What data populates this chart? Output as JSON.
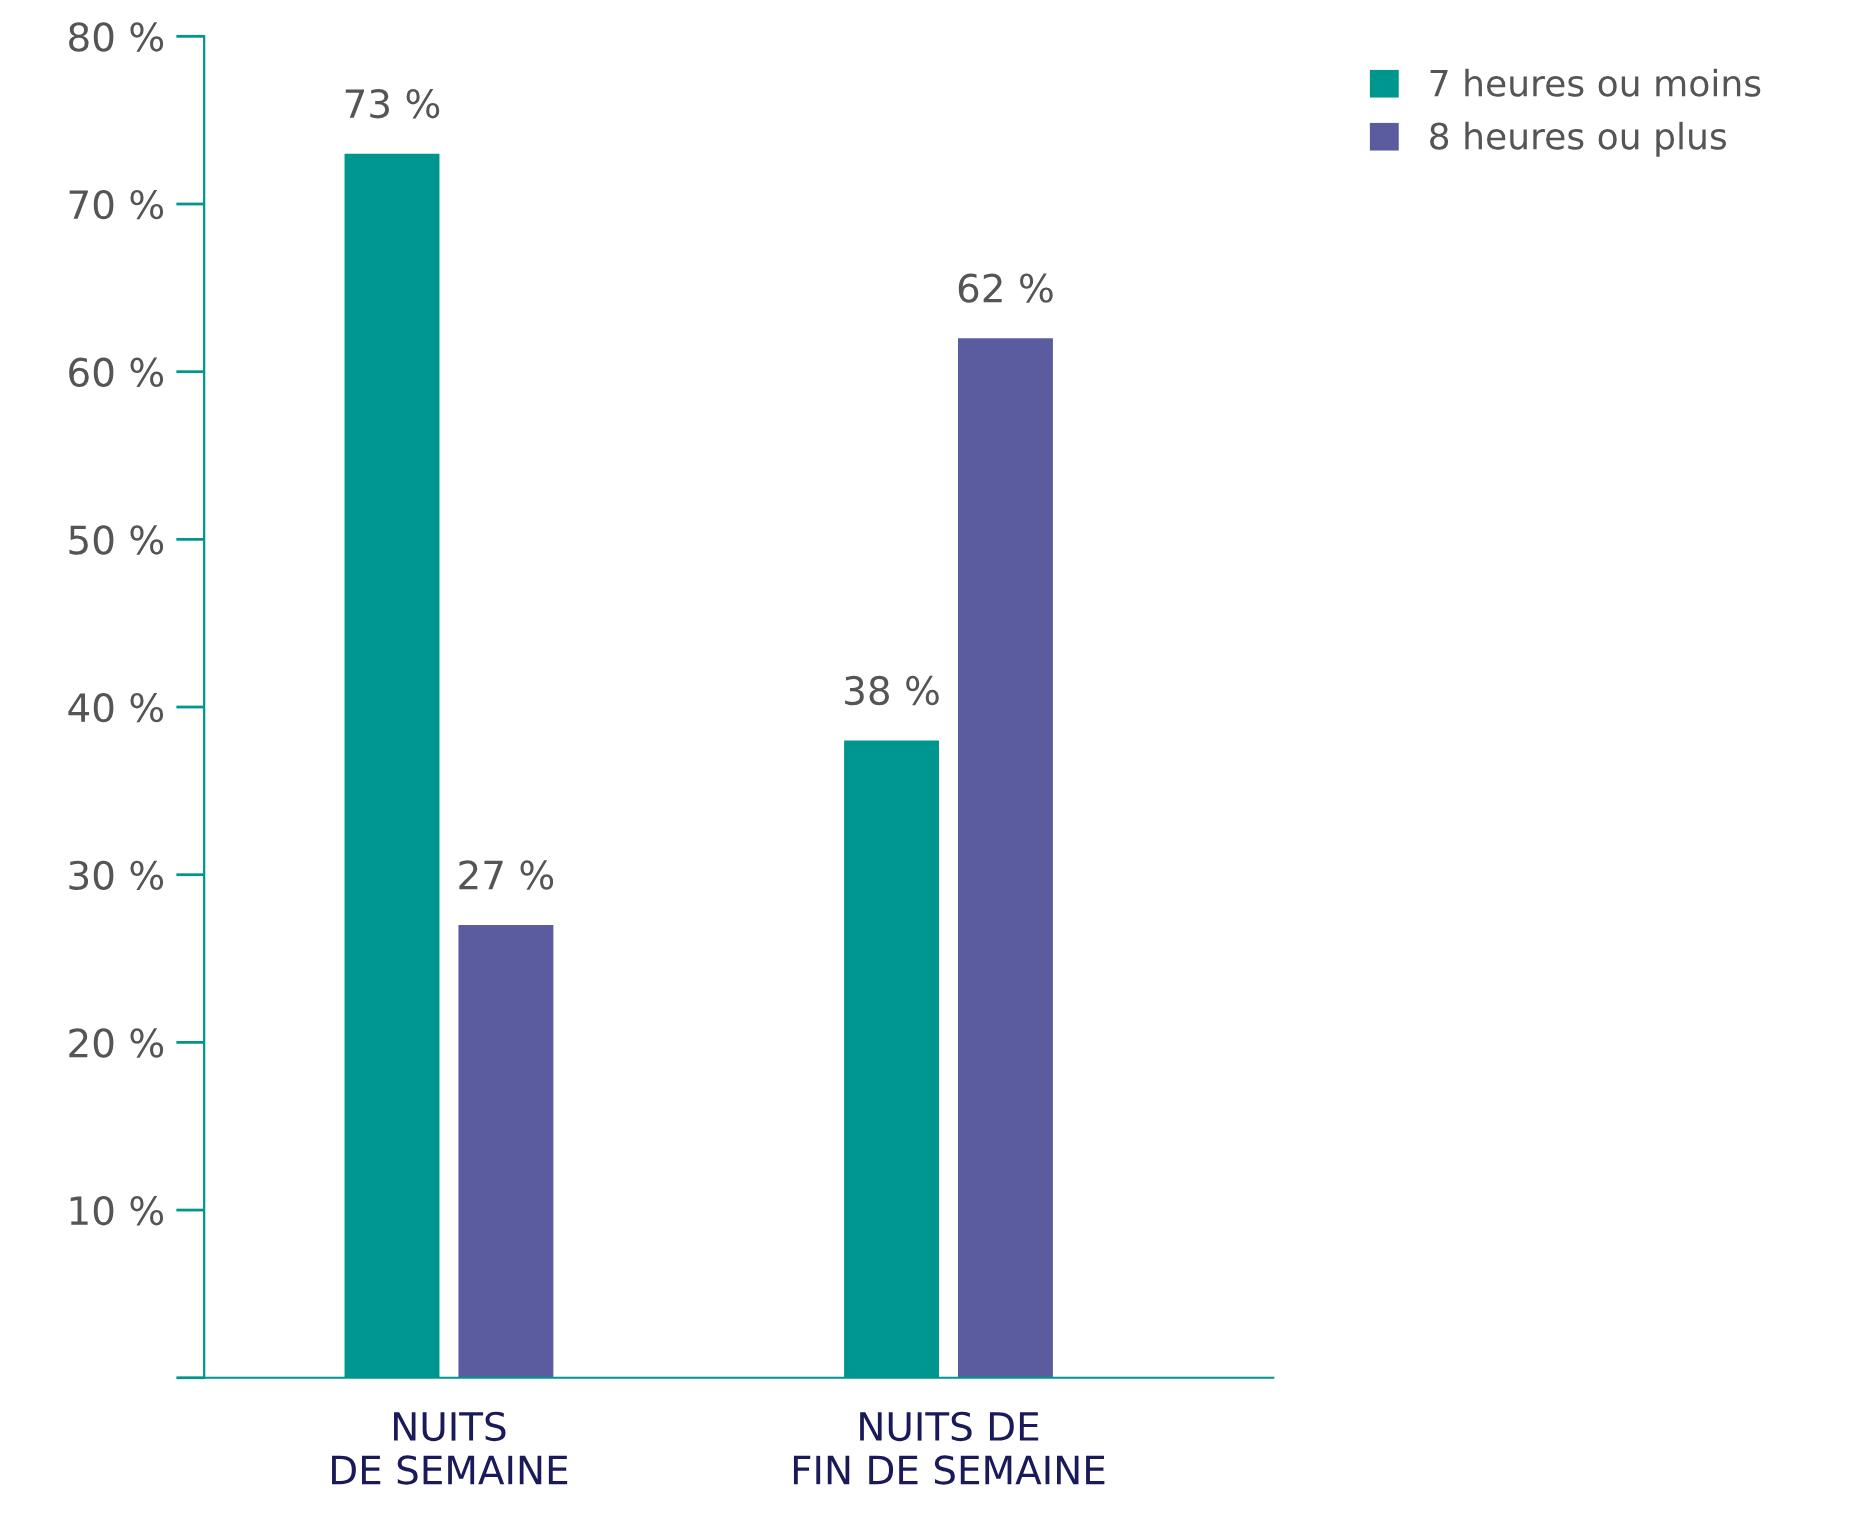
{
  "chart_data": {
    "type": "bar",
    "categories": [
      "NUITS\nDE SEMAINE",
      "NUITS DE\nFIN DE SEMAINE"
    ],
    "series": [
      {
        "name": "7 heures ou moins",
        "color": "#009690",
        "values": [
          73,
          38
        ],
        "value_labels": [
          "73 %",
          "38 %"
        ]
      },
      {
        "name": "8 heures ou plus",
        "color": "#5b5ca0",
        "values": [
          27,
          62
        ],
        "value_labels": [
          "27 %",
          "62 %"
        ]
      }
    ],
    "ylim": [
      0,
      80
    ],
    "yticks": [
      {
        "value": 0,
        "label": null
      },
      {
        "value": 10,
        "label": "10 %"
      },
      {
        "value": 20,
        "label": "20 %"
      },
      {
        "value": 30,
        "label": "30 %"
      },
      {
        "value": 40,
        "label": "40 %"
      },
      {
        "value": 50,
        "label": "50 %"
      },
      {
        "value": 60,
        "label": "60 %"
      },
      {
        "value": 70,
        "label": "70 %"
      },
      {
        "value": 80,
        "label": "80 %"
      }
    ],
    "grid": false,
    "legend": "top right"
  }
}
